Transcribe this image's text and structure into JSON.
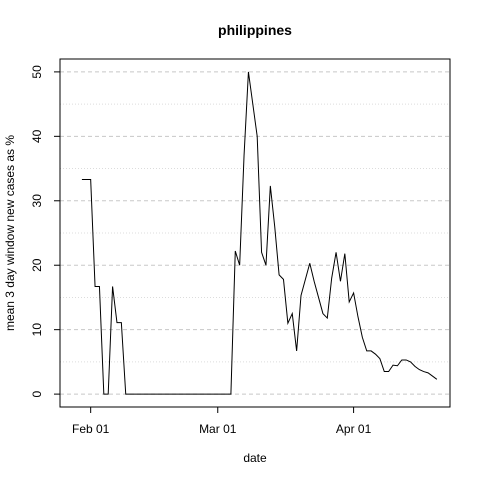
{
  "chart_data": {
    "type": "line",
    "title": "philippines",
    "xlabel": "date",
    "ylabel": "mean  3  day window new cases as %",
    "ylim": [
      -2,
      52
    ],
    "xlim": [
      "2020-01-25",
      "2020-04-23"
    ],
    "yticks": [
      0,
      10,
      20,
      30,
      40,
      50
    ],
    "xticks": [
      {
        "date": "2020-02-01",
        "label": "Feb 01"
      },
      {
        "date": "2020-03-01",
        "label": "Mar 01"
      },
      {
        "date": "2020-04-01",
        "label": "Apr 01"
      }
    ],
    "grid": true,
    "series": [
      {
        "points": [
          [
            "2020-01-30",
            33.3
          ],
          [
            "2020-01-31",
            33.3
          ],
          [
            "2020-02-01",
            33.3
          ],
          [
            "2020-02-02",
            16.7
          ],
          [
            "2020-02-03",
            16.7
          ],
          [
            "2020-02-04",
            0
          ],
          [
            "2020-02-05",
            0
          ],
          [
            "2020-02-06",
            16.7
          ],
          [
            "2020-02-07",
            11.1
          ],
          [
            "2020-02-08",
            11.1
          ],
          [
            "2020-02-09",
            0
          ],
          [
            "2020-02-10",
            0
          ],
          [
            "2020-02-15",
            0
          ],
          [
            "2020-02-20",
            0
          ],
          [
            "2020-02-25",
            0
          ],
          [
            "2020-03-01",
            0
          ],
          [
            "2020-03-04",
            0
          ],
          [
            "2020-03-05",
            22.2
          ],
          [
            "2020-03-06",
            20.0
          ],
          [
            "2020-03-07",
            37.0
          ],
          [
            "2020-03-08",
            50.0
          ],
          [
            "2020-03-09",
            45.0
          ],
          [
            "2020-03-10",
            40.0
          ],
          [
            "2020-03-11",
            22.0
          ],
          [
            "2020-03-12",
            20.0
          ],
          [
            "2020-03-13",
            32.3
          ],
          [
            "2020-03-14",
            26.0
          ],
          [
            "2020-03-15",
            18.5
          ],
          [
            "2020-03-16",
            17.8
          ],
          [
            "2020-03-17",
            11.0
          ],
          [
            "2020-03-18",
            12.5
          ],
          [
            "2020-03-19",
            6.7
          ],
          [
            "2020-03-20",
            15.3
          ],
          [
            "2020-03-21",
            17.8
          ],
          [
            "2020-03-22",
            20.3
          ],
          [
            "2020-03-23",
            17.5
          ],
          [
            "2020-03-24",
            15.0
          ],
          [
            "2020-03-25",
            12.5
          ],
          [
            "2020-03-26",
            11.8
          ],
          [
            "2020-03-27",
            18.0
          ],
          [
            "2020-03-28",
            22.0
          ],
          [
            "2020-03-29",
            17.5
          ],
          [
            "2020-03-30",
            21.8
          ],
          [
            "2020-03-31",
            14.3
          ],
          [
            "2020-04-01",
            15.7
          ],
          [
            "2020-04-02",
            12.0
          ],
          [
            "2020-04-03",
            8.8
          ],
          [
            "2020-04-04",
            6.7
          ],
          [
            "2020-04-05",
            6.7
          ],
          [
            "2020-04-06",
            6.2
          ],
          [
            "2020-04-07",
            5.5
          ],
          [
            "2020-04-08",
            3.5
          ],
          [
            "2020-04-09",
            3.5
          ],
          [
            "2020-04-10",
            4.5
          ],
          [
            "2020-04-11",
            4.4
          ],
          [
            "2020-04-12",
            5.3
          ],
          [
            "2020-04-13",
            5.3
          ],
          [
            "2020-04-14",
            5.0
          ],
          [
            "2020-04-15",
            4.3
          ],
          [
            "2020-04-16",
            3.8
          ],
          [
            "2020-04-17",
            3.5
          ],
          [
            "2020-04-18",
            3.3
          ],
          [
            "2020-04-19",
            2.8
          ],
          [
            "2020-04-20",
            2.3
          ]
        ]
      }
    ]
  }
}
